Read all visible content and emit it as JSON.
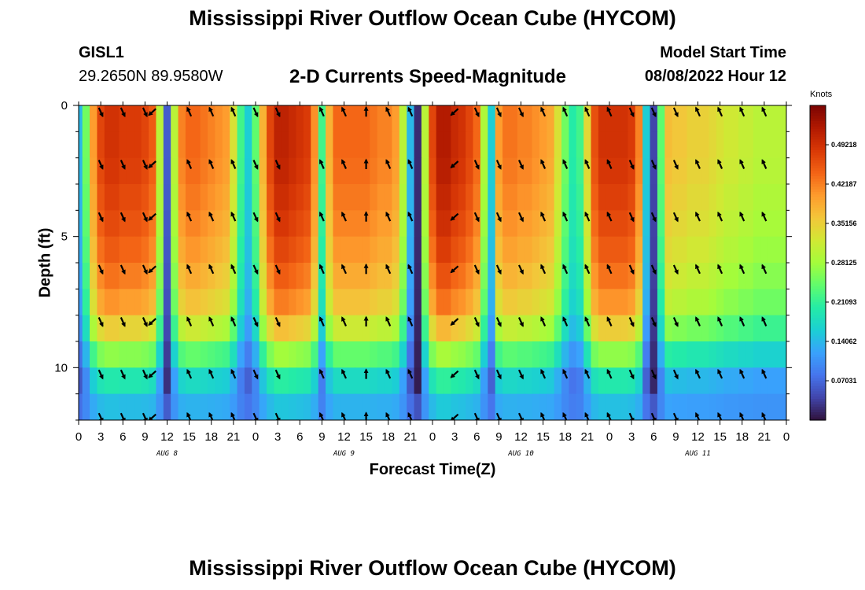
{
  "header": {
    "title": "Mississippi River Outflow Ocean Cube (HYCOM)",
    "station": "GISL1",
    "coords": "29.2650N  89.9580W",
    "subtitle": "2-D Currents Speed-Magnitude",
    "model_start_label": "Model Start Time",
    "model_start_value": "08/08/2022 Hour 12",
    "footer_title": "Mississippi River Outflow Ocean Cube (HYCOM)"
  },
  "chart_data": {
    "type": "heatmap",
    "title": "2-D Currents Speed-Magnitude",
    "xlabel": "Forecast Time(Z)",
    "ylabel": "Depth (ft)",
    "x_ticks": [
      "0",
      "3",
      "6",
      "9",
      "12",
      "15",
      "18",
      "21",
      "0",
      "3",
      "6",
      "9",
      "12",
      "15",
      "18",
      "21",
      "0",
      "3",
      "6",
      "9",
      "12",
      "15",
      "18",
      "21",
      "0",
      "3",
      "6",
      "9",
      "12",
      "15",
      "18",
      "21",
      "0"
    ],
    "x_range_hours": [
      0,
      96
    ],
    "day_labels": [
      "AUG 8",
      "AUG 9",
      "AUG 10",
      "AUG 11"
    ],
    "y_ticks": [
      "0",
      "5",
      "10"
    ],
    "ylim": [
      0,
      12
    ],
    "y_inverted": true,
    "depth_levels_ft": [
      0.5,
      1.5,
      2.5,
      3.5,
      4.5,
      5.5,
      6.5,
      7.5,
      8.5,
      9.5,
      10.5,
      11.5
    ],
    "colorbar": {
      "units": "Knots",
      "labels": [
        "0.49218",
        "0.42187",
        "0.35156",
        "0.28125",
        "0.21093",
        "0.14062",
        "0.07031"
      ],
      "range": [
        0.0,
        0.5625
      ],
      "colormap": [
        "#30123b",
        "#4145ab",
        "#4675ed",
        "#39a2fc",
        "#1bcfd4",
        "#24eca6",
        "#61fc6c",
        "#a4fc3b",
        "#d1e834",
        "#f3c63a",
        "#fe9b2d",
        "#f36315",
        "#d93806",
        "#b11901",
        "#7a0402"
      ]
    },
    "speed_by_hour": {
      "hours": [
        0,
        1,
        2,
        3,
        4,
        5,
        6,
        7,
        8,
        9,
        10,
        11,
        12,
        13,
        14,
        15,
        16,
        17,
        18,
        19,
        20,
        21,
        22,
        23,
        24,
        25,
        26,
        27,
        28,
        29,
        30,
        31,
        32,
        33,
        34,
        35,
        36,
        37,
        38,
        39,
        40,
        41,
        42,
        43,
        44,
        45,
        46,
        47,
        48,
        49,
        50,
        51,
        52,
        53,
        54,
        55,
        56,
        57,
        58,
        59,
        60,
        61,
        62,
        63,
        64,
        65,
        66,
        67,
        68,
        69,
        70,
        71,
        72,
        73,
        74,
        75,
        76,
        77,
        78,
        79,
        80,
        81,
        82,
        83,
        84,
        85,
        86,
        87,
        88,
        89,
        90,
        91,
        92,
        93,
        94,
        95,
        96
      ],
      "surface_knots": [
        0.14,
        0.25,
        0.4,
        0.47,
        0.49,
        0.49,
        0.48,
        0.48,
        0.48,
        0.47,
        0.45,
        0.3,
        0.06,
        0.3,
        0.42,
        0.44,
        0.44,
        0.43,
        0.42,
        0.41,
        0.4,
        0.33,
        0.22,
        0.16,
        0.24,
        0.38,
        0.47,
        0.51,
        0.51,
        0.5,
        0.49,
        0.48,
        0.41,
        0.22,
        0.38,
        0.44,
        0.44,
        0.44,
        0.44,
        0.44,
        0.43,
        0.42,
        0.42,
        0.4,
        0.3,
        0.14,
        0.02,
        0.3,
        0.47,
        0.52,
        0.52,
        0.5,
        0.49,
        0.47,
        0.44,
        0.29,
        0.16,
        0.4,
        0.43,
        0.43,
        0.42,
        0.42,
        0.41,
        0.4,
        0.39,
        0.33,
        0.25,
        0.2,
        0.22,
        0.34,
        0.46,
        0.49,
        0.49,
        0.49,
        0.49,
        0.48,
        0.42,
        0.16,
        0.04,
        0.24,
        0.37,
        0.36,
        0.36,
        0.35,
        0.35,
        0.35,
        0.34,
        0.33,
        0.32,
        0.32,
        0.31,
        0.31,
        0.3,
        0.3,
        0.3,
        0.3,
        0.3
      ]
    },
    "depth_attenuation": [
      1.0,
      1.0,
      0.99,
      0.97,
      0.95,
      0.92,
      0.88,
      0.83,
      0.72,
      0.55,
      0.4,
      0.3
    ],
    "bottom_lift": 0.08,
    "vectors": {
      "depth_rows_ft": [
        0.25,
        2.25,
        4.25,
        6.25,
        8.25,
        10.25,
        11.9
      ],
      "columns": [
        {
          "hour": 3,
          "dir": "SE"
        },
        {
          "hour": 6,
          "dir": "SE"
        },
        {
          "hour": 9,
          "dir": "SE"
        },
        {
          "hour": 10,
          "dir": "SW"
        },
        {
          "hour": 15,
          "dir": "NW"
        },
        {
          "hour": 18,
          "dir": "NW"
        },
        {
          "hour": 21,
          "dir": "NW"
        },
        {
          "hour": 24,
          "dir": "SE"
        },
        {
          "hour": 27,
          "dir": "SE"
        },
        {
          "hour": 33,
          "dir": "NW"
        },
        {
          "hour": 36,
          "dir": "NW"
        },
        {
          "hour": 39,
          "dir": "NN"
        },
        {
          "hour": 42,
          "dir": "NW"
        },
        {
          "hour": 45,
          "dir": "NW"
        },
        {
          "hour": 51,
          "dir": "SW"
        },
        {
          "hour": 54,
          "dir": "SE"
        },
        {
          "hour": 57,
          "dir": "SE"
        },
        {
          "hour": 60,
          "dir": "SE"
        },
        {
          "hour": 63,
          "dir": "NW"
        },
        {
          "hour": 66,
          "dir": "NW"
        },
        {
          "hour": 69,
          "dir": "NW"
        },
        {
          "hour": 72,
          "dir": "NW"
        },
        {
          "hour": 75,
          "dir": "SE"
        },
        {
          "hour": 78,
          "dir": "SE"
        },
        {
          "hour": 81,
          "dir": "SE"
        },
        {
          "hour": 84,
          "dir": "NW"
        },
        {
          "hour": 87,
          "dir": "NW"
        },
        {
          "hour": 90,
          "dir": "NW"
        },
        {
          "hour": 93,
          "dir": "NW"
        }
      ]
    }
  }
}
